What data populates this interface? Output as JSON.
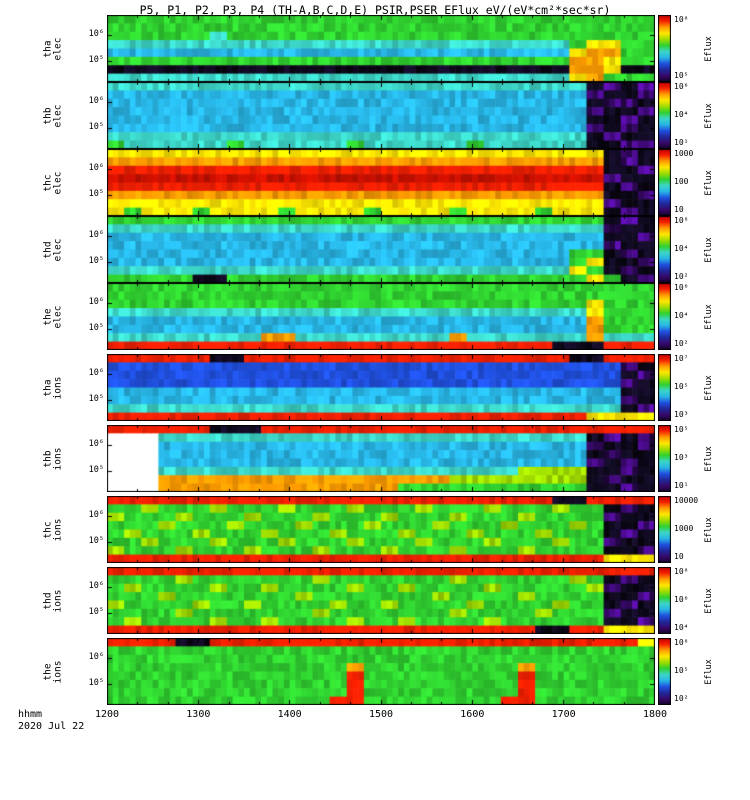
{
  "title": "P5, P1, P2, P3, P4 (TH-A,B,C,D,E) PSIR,PSER EFlux eV/(eV*cm²*sec*sr)",
  "x_axis": {
    "label": "hhmm",
    "date": "2020 Jul 22",
    "ticks": [
      "1200",
      "1300",
      "1400",
      "1500",
      "1600",
      "1700",
      "1800"
    ]
  },
  "colorbar_label": "Eflux",
  "palette": {
    "R": "#f52000",
    "r": "#c81000",
    "O": "#ff9c00",
    "Y": "#ffe800",
    "g": "#a0dc00",
    "G": "#30d130",
    "c": "#3cd6c8",
    "C": "#28b6e6",
    "B": "#2050e0",
    "P": "#38086a",
    "K": "#0a0614",
    "W": "#ffffff"
  },
  "colorbar_gradient": [
    "#c00000",
    "#f52000",
    "#ff9c00",
    "#ffe800",
    "#a0dc00",
    "#30d130",
    "#3cd6c8",
    "#28b6e6",
    "#2050e0",
    "#202898",
    "#38086a",
    "#100322"
  ],
  "chart_data": {
    "type": "heatmap",
    "colormap": "rainbow",
    "time_start": "1200",
    "time_end": "1800",
    "bins_per_row": 32,
    "panels": [
      {
        "id": "tha-elec",
        "spacecraft": "tha",
        "species": "elec",
        "label_lines": [
          "tha",
          "elec"
        ],
        "y_ticks": [
          "10⁶",
          "10⁵"
        ],
        "colorbar_ticks": [
          "10⁸",
          "10⁵"
        ],
        "rows": [
          "GGGGGGGGGGGGGGGGGGGGGGGGGGGGGGGG",
          "GGGGGGGGGGGGGGGGGGGGGGGGGGGGGGGG",
          "GGGGGGcGGGGGGGGGGGGGGGGGGGGGGGGG",
          "cccccccccccccccccccccccccccGYYGG",
          "CCCCCCCCCCCCCCCCCCCCCCCCCCCYOOGG",
          "GGGGGGGGGGGGGGGGGGGGGGGGGGGOOYGG",
          "KKKKKKKKKKKKKKKKKKKKKKKKKKKOOYKK",
          "cccccccccccccccccccccccccccYOGGG"
        ]
      },
      {
        "id": "thb-elec",
        "spacecraft": "thb",
        "species": "elec",
        "label_lines": [
          "thb",
          "elec"
        ],
        "y_ticks": [
          "10⁶",
          "10⁵"
        ],
        "colorbar_ticks": [
          "10⁶",
          "10⁴",
          "10¹"
        ],
        "rows": [
          "ccccccccccccccccccccccccccccKPKP",
          "CCCCCCCCCCCCCCCCCCCCCCCCCCCCPKKP",
          "CCCCCCCCCCCCCCCCCCCCCCCCCCCCKPPK",
          "CCCCCCCCCCCCCCCCCCCCCCCCCCCCPKKP",
          "CCCCCCCCCCCCCCCCCCCCCCCCCCCCKKPK",
          "CCCCCCCCCCCCCCCCCCCCCCCCCCCCPKPK",
          "ccccccccccccccccccccccccccccKPKK",
          "GccccccGccccccGccccccGccccccKKPP"
        ]
      },
      {
        "id": "thc-elec",
        "spacecraft": "thc",
        "species": "elec",
        "label_lines": [
          "thc",
          "elec"
        ],
        "y_ticks": [
          "10⁶",
          "10⁵"
        ],
        "colorbar_ticks": [
          "1000",
          "100",
          "10"
        ],
        "rows": [
          "YYYYYYYYYYYYYYYYYYYYYYYYYYYYYKPK",
          "OOOOOOOOOOOOOOOOOOOOOOOOOOOOOKPK",
          "RRRRRRRRRRRRRRRRRRRRRRRRRRRRRKKP",
          "rrrrrrrrrrrrrrrrrrrrrrrrrrrrrPKK",
          "RRRRRRRRRRRRRRRRRRRRRRRRRRRRRKPK",
          "OOOOOOOOOOOOOOOOOOOOOOOOOOOOOKKP",
          "YYYYYYYYYYYYYYYYYYYYYYYYYYYYYPKK",
          "YGYYYGYYYYGYYYYGYYYYGYYYYGYYYKPK"
        ]
      },
      {
        "id": "thd-elec",
        "spacecraft": "thd",
        "species": "elec",
        "label_lines": [
          "thd",
          "elec"
        ],
        "y_ticks": [
          "10⁶",
          "10⁵"
        ],
        "colorbar_ticks": [
          "10⁶",
          "10⁴",
          "10²"
        ],
        "rows": [
          "GGGGGGGGGGGGGGGGGGGGGGGGGGGGGKPK",
          "cccccccccccccccccccccccccccccPKK",
          "CCCCCCCCCCCCCCCCCCCCCCCCCCCCCKKP",
          "CCCCCCCCCCCCCCCCCCCCCCCCCCCCCPKK",
          "CCCCCCCCCCCCCCCCCCCCCCCCCCCGGKPK",
          "CCCCCCCCCCCCCCCCCCCCCCCCCCCGYKKP",
          "cccccccccccccccccccccccccccYGKPK",
          "GGGGGKKGGGGGGGGGGGGGGGGGGGGGYGKP"
        ]
      },
      {
        "id": "the-elec",
        "spacecraft": "the",
        "species": "elec",
        "label_lines": [
          "the",
          "elec"
        ],
        "y_ticks": [
          "10⁶",
          "10⁵"
        ],
        "colorbar_ticks": [
          "10⁶",
          "10⁴",
          "10²"
        ],
        "rows": [
          "GGGGGGGGGGGGGGGGGGGGGGGGGGGGGGGG",
          "GGGGGGGGGGGGGGGGGGGGGGGGGGGGGGGG",
          "GGGGGGGGGGGGGGGGGGGGGGGGGGGGYGGG",
          "ccccccccccccccccccccccccccccYGGG",
          "CCCCCCCCCCCCCCCCCCCCCCCCCCCCOGGG",
          "CCCCCCCCCCCCCCCCCCCCCCCCCCCCOGGG",
          "cccccccccOOcccccccccOcccccccOccc",
          "RRRRRRRRRRRRRRRRRRRRRRRRRRKKKRRR"
        ]
      },
      {
        "id": "tha-ions",
        "spacecraft": "tha",
        "species": "ions",
        "label_lines": [
          "tha",
          "ions"
        ],
        "y_ticks": [
          "10⁶",
          "10⁵"
        ],
        "colorbar_ticks": [
          "10⁷",
          "10⁵",
          "10³"
        ],
        "rows": [
          "RRRRRRKKRRRRRRRRRRRRRRRRRRRKKRRR",
          "BBBBBBBBBBBBBBBBBBBBBBBBBBBBBBPK",
          "BBBBBBBBBBBBBBBBBBBBBBBBBBBBBBKP",
          "BBBBBBBBBBBBBBBBBBBBBBBBBBBBBBPK",
          "CCCCCCCCCCCCCCCCCCCCCCCCCCCCCCKK",
          "CCCCCCCCCCCCCCCCCCCCCCCCCCCCCCPK",
          "ccccccccccccccccccccccccccccccKP",
          "RRRRRRRRRRRRRRRRRRRRRRRRRRRRYYYY"
        ]
      },
      {
        "id": "thb-ions",
        "spacecraft": "thb",
        "species": "ions",
        "label_lines": [
          "thb",
          "ions"
        ],
        "y_ticks": [
          "10⁶",
          "10⁵"
        ],
        "colorbar_ticks": [
          "10⁵",
          "10³",
          "10¹"
        ],
        "rows": [
          "RRRRRRKKKRRRRRRRRRRRRRRRRRRRRRRR",
          "WWWcccccccccccccccccccccccccKPKP",
          "WWWCCCCCCCCCCCCCCCCCCCCCCCCCPKKP",
          "WWWCCCCCCCCCCCCCCCCCCCCCCCCCKPKK",
          "WWWCCCCCCCCCCCCCCCCCCCCCCCCCPKPK",
          "WWWcccccccccccccccccccccggggKKPK",
          "WWWOOOOOOOOOOOOOOOOOggggggggKPKK",
          "WWWOOOOOOOOOOOOOOGGGGGGGGGGGKKPK"
        ]
      },
      {
        "id": "thc-ions",
        "spacecraft": "thc",
        "species": "ions",
        "label_lines": [
          "thc",
          "ions"
        ],
        "y_ticks": [
          "10⁶",
          "10⁵"
        ],
        "colorbar_ticks": [
          "10000",
          "1000",
          "10"
        ],
        "rows": [
          "RRRRRRRRRRRRRRRRRRRRRRRRRRKKRRRR",
          "GGgGGGgGGGgGGGgGGGgGGGgGGGgGGKPK",
          "gGGGgGGGgGGGgGGGgGGGgGGGgGGGGPKK",
          "GGGgGGGgGGGgGGGgGGGgGGGgGGGgGKKP",
          "GgGGGgGGGgGGGgGGGgGGGgGGGgGGGKPK",
          "GGgGGGgGGGgGGGgGGGgGGGgGGGgGGPKK",
          "gGGGgGGGgGGGgGGGgGGGgGGGgGGGGKKP",
          "RRRRRRRRRRRRRRRRRRRRRRRRRRRRRYYY"
        ]
      },
      {
        "id": "thd-ions",
        "spacecraft": "thd",
        "species": "ions",
        "label_lines": [
          "thd",
          "ions"
        ],
        "y_ticks": [
          "10⁶",
          "10⁵"
        ],
        "colorbar_ticks": [
          "10⁸",
          "10⁶",
          "10⁴"
        ],
        "rows": [
          "RRRRRRRRRRRRRRRRRRRRRRRRRRRRRRRR",
          "GGGGgGGGGGGGgGGGGGGGgGGGGGGgGKPK",
          "GgGGGGgGGgGGGGgGGgGGGGgGGGGGgPKK",
          "GGGgGGGGGGGgGGGGGGGgGGGGgGGGGKKP",
          "gGGGGgGGgGGGGgGGgGGGGgGGGGgGGKPK",
          "GGGGgGGGGGGGgGGGGGGGgGGGGgGGGPKK",
          "GgGGGGgGGgGGGGgGGgGGGGgGGGGGGKKP",
          "RRRRRRRRRRRRRRRRRRRRRRRRRKKRRYYY"
        ]
      },
      {
        "id": "the-ions",
        "spacecraft": "the",
        "species": "ions",
        "label_lines": [
          "the",
          "ions"
        ],
        "y_ticks": [
          "10⁶",
          "10⁵"
        ],
        "colorbar_ticks": [
          "10⁸",
          "10⁵",
          "10²"
        ],
        "rows": [
          "RRRRKKRRRRRRRRRRRRRRRRRRRRRRRRRY",
          "GGGGGGGGGGGGGGGGGGGGGGGGGGGGGGGG",
          "GGGGGGGGGGGGGGGGGGGGGGGGGGGGGGGG",
          "GGGGGGGGGGGGGGOGGGGGGGGGOGGGGGGG",
          "GGGGGGGGGGGGGGRGGGGGGGGGRGGGGGGG",
          "GGGGGGGGGGGGGGRGGGGGGGGGRGGGGGGG",
          "GGGGGGGGGGGGGGRGGGGGGGGGRGGGGGGG",
          "GGGGGGGGGGGGGRRGGGGGGGGRRGGGGGGG"
        ]
      }
    ]
  }
}
